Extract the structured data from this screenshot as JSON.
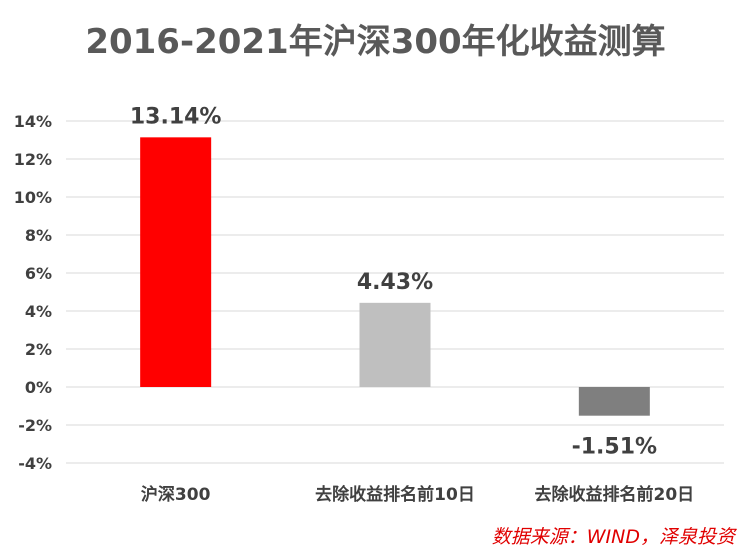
{
  "chart_data": {
    "type": "bar",
    "title": "2016-2021年沪深300年化收益测算",
    "categories": [
      "沪深300",
      "去除收益排名前10日",
      "去除收益排名前20日"
    ],
    "values": [
      13.14,
      4.43,
      -1.51
    ],
    "data_labels": [
      "13.14%",
      "4.43%",
      "-1.51%"
    ],
    "bar_colors": [
      "#ff0000",
      "#bfbfbf",
      "#7f7f7f"
    ],
    "ylim": [
      -4,
      14
    ],
    "ytick_step": 2,
    "ytick_suffix": "%",
    "grid": true,
    "xlabel": "",
    "ylabel": ""
  },
  "source": "数据来源：WIND，泽泉投资",
  "colors": {
    "title": "#595959",
    "axis_text": "#404040",
    "data_label": "#404040",
    "grid": "#d9d9d9",
    "source": "#e00000"
  }
}
